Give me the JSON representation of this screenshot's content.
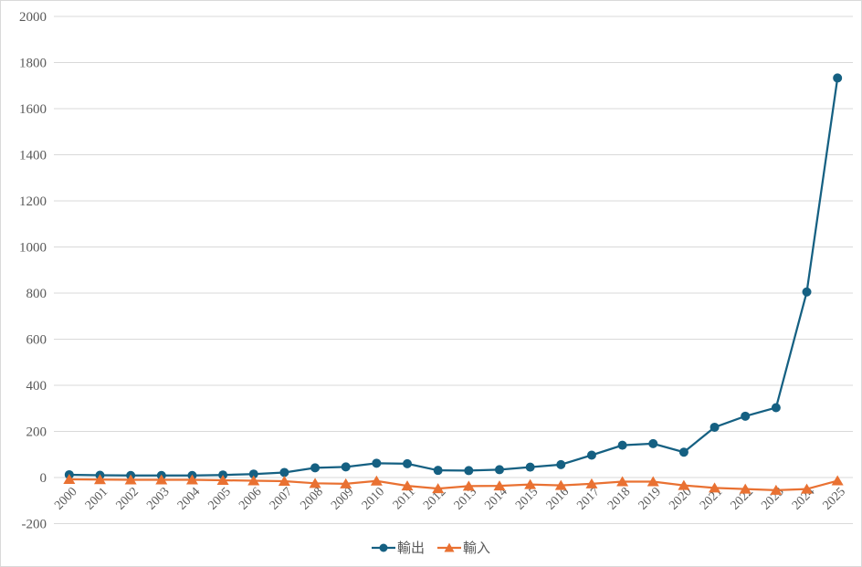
{
  "chart_data": {
    "type": "line",
    "title": "",
    "xlabel": "",
    "ylabel": "",
    "categories": [
      "2000",
      "2001",
      "2002",
      "2003",
      "2004",
      "2005",
      "2006",
      "2007",
      "2008",
      "2009",
      "2010",
      "2011",
      "2012",
      "2013",
      "2014",
      "2015",
      "2016",
      "2017",
      "2018",
      "2019",
      "2020",
      "2021",
      "2022",
      "2023",
      "2024",
      "2025"
    ],
    "series": [
      {
        "name": "輸出",
        "marker": "circle",
        "color": "#156082",
        "values": [
          12,
          10,
          9,
          9,
          9,
          11,
          15,
          22,
          42,
          46,
          62,
          60,
          31,
          30,
          34,
          45,
          56,
          97,
          140,
          147,
          110,
          218,
          266,
          303,
          805,
          1733
        ]
      },
      {
        "name": "輸入",
        "marker": "triangle",
        "color": "#E97132",
        "values": [
          -8,
          -9,
          -10,
          -10,
          -10,
          -12,
          -14,
          -16,
          -25,
          -27,
          -15,
          -36,
          -48,
          -37,
          -36,
          -30,
          -34,
          -27,
          -18,
          -18,
          -34,
          -45,
          -50,
          -55,
          -50,
          -14
        ]
      }
    ],
    "ylim": [
      -200,
      2000
    ],
    "yticks": [
      2000,
      1800,
      1600,
      1400,
      1200,
      1000,
      800,
      600,
      400,
      200,
      0,
      -200
    ],
    "x_label_rotation": -45,
    "grid": true,
    "legend_position": "bottom",
    "gridline_color": "#D9D9D9",
    "tick_label_color": "#595959",
    "background_color": "#FFFFFF",
    "border_color": "#D9D9D9"
  }
}
